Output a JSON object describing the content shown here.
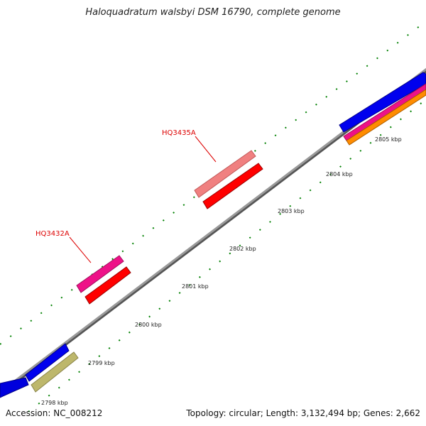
{
  "title": "Haloquadratum walsbyi DSM 16790, complete genome",
  "footer": {
    "accession": "Accession: NC_008212",
    "summary": "Topology: circular; Length: 3,132,494 bp; Genes: 2,662"
  },
  "ticks": [
    "2798 kbp",
    "2799 kbp",
    "2800 kbp",
    "2801 kbp",
    "2802 kbp",
    "2803 kbp",
    "2804 kbp",
    "2805 kbp"
  ],
  "gene_labels": [
    "HQ3432A",
    "HQ3435A"
  ],
  "colors": {
    "backbone": "#8a8a8a",
    "blue": "#0000ee",
    "red": "#ff0000",
    "pink": "#f08080",
    "magenta": "#ee1188",
    "olive": "#bdb76b",
    "orange": "#ff8c00",
    "tick": "#008000"
  }
}
